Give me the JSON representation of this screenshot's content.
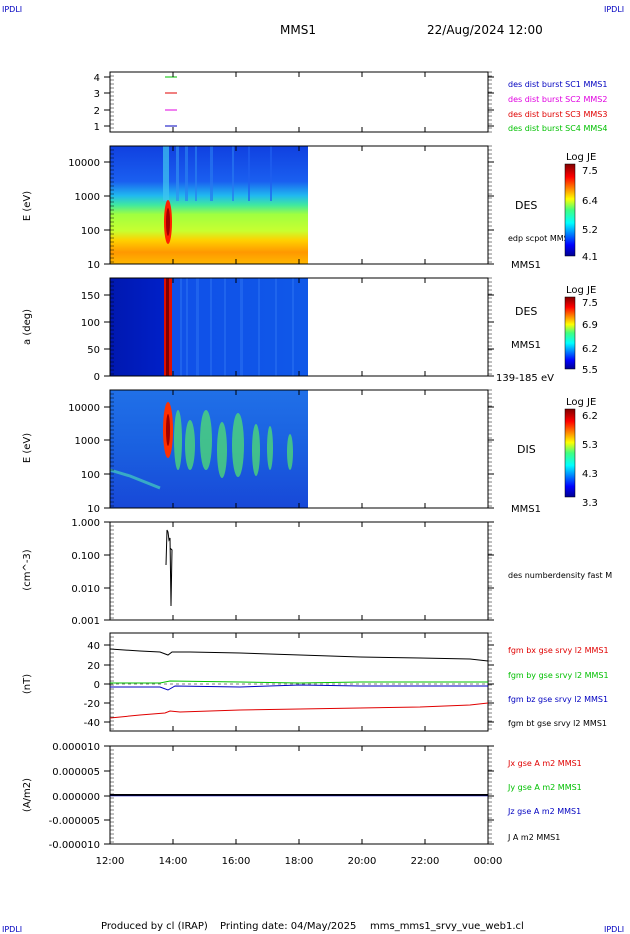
{
  "header": {
    "corner_tl": "IPDLI",
    "corner_tr": "IPDLI",
    "spacecraft": "MMS1",
    "datetime": "22/Aug/2024 12:00",
    "corner_bl": "IPDLI",
    "corner_br": "IPDLI"
  },
  "footer": {
    "produced": "Produced by cl (IRAP)",
    "printing": "Printing date: 04/May/2025",
    "file": "mms_mms1_srvy_vue_web1.cl"
  },
  "colors": {
    "green": "#00c000",
    "red": "#e00000",
    "magenta": "#e000e0",
    "blue": "#0000c0",
    "black": "#000000"
  },
  "chart_data": [
    {
      "type": "line",
      "panel": "spacecraft-index",
      "y_ticks": [
        "4",
        "3",
        "2",
        "1"
      ],
      "series": [
        {
          "name": "des dist burst SC1 MMS1",
          "color": "#0000c0",
          "y": 1
        },
        {
          "name": "des dist burst SC2 MMS2",
          "color": "#e000e0",
          "y": 2
        },
        {
          "name": "des dist burst SC3 MMS3",
          "color": "#e00000",
          "y": 3
        },
        {
          "name": "des dist burst SC4 MMS4",
          "color": "#00c000",
          "y": 4
        }
      ]
    },
    {
      "type": "heatmap",
      "panel": "des-energy",
      "ylabel": "E (eV)",
      "y_ticks": [
        "10000",
        "1000",
        "100",
        "10"
      ],
      "label": "DES",
      "sublabel": "edp scpot MMS1",
      "bottom_label": "MMS1",
      "colorbar": {
        "title": "Log JE",
        "ticks": [
          "7.5",
          "6.4",
          "5.2",
          "4.1"
        ]
      }
    },
    {
      "type": "heatmap",
      "panel": "des-pitch",
      "ylabel": "a (deg)",
      "y_ticks": [
        "150",
        "100",
        "50",
        "0"
      ],
      "label": "DES",
      "sublabel": "MMS1",
      "bottom_label": "139-185 eV",
      "colorbar": {
        "title": "Log JE",
        "ticks": [
          "7.5",
          "6.9",
          "6.2",
          "5.5"
        ]
      }
    },
    {
      "type": "heatmap",
      "panel": "dis-energy",
      "ylabel": "E (eV)",
      "y_ticks": [
        "10000",
        "1000",
        "100",
        "10"
      ],
      "label": "DIS",
      "bottom_label": "MMS1",
      "colorbar": {
        "title": "Log JE",
        "ticks": [
          "6.2",
          "5.3",
          "4.3",
          "3.3"
        ]
      }
    },
    {
      "type": "line",
      "panel": "density",
      "ylabel": "(cm^-3)",
      "y_ticks": [
        "1.000",
        "0.100",
        "0.010",
        "0.001"
      ],
      "series": [
        {
          "name": "des numberdensity fast M",
          "color": "#000000"
        }
      ]
    },
    {
      "type": "line",
      "panel": "magnetic-field",
      "ylabel": "(nT)",
      "y_ticks": [
        "40",
        "20",
        "0",
        "-20",
        "-40"
      ],
      "ylim": [
        -45,
        45
      ],
      "series": [
        {
          "name": "fgm bx gse srvy l2 MMS1",
          "color": "#e00000"
        },
        {
          "name": "fgm by gse srvy l2 MMS1",
          "color": "#00c000"
        },
        {
          "name": "fgm bz gse srvy l2 MMS1",
          "color": "#0000c0"
        },
        {
          "name": "fgm bt gse srvy l2 MMS1",
          "color": "#000000"
        }
      ]
    },
    {
      "type": "line",
      "panel": "current",
      "ylabel": "(A/m2)",
      "y_ticks": [
        "0.000010",
        "0.000005",
        "0.000000",
        "-0.000005",
        "-0.000010"
      ],
      "series": [
        {
          "name": "Jx gse A m2 MMS1",
          "color": "#e00000"
        },
        {
          "name": "Jy gse A m2 MMS1",
          "color": "#00c000"
        },
        {
          "name": "Jz gse A m2 MMS1",
          "color": "#0000c0"
        },
        {
          "name": "J A m2 MMS1",
          "color": "#000000"
        }
      ]
    }
  ],
  "x_ticks": [
    "12:00",
    "14:00",
    "16:00",
    "18:00",
    "20:00",
    "22:00",
    "00:00"
  ]
}
